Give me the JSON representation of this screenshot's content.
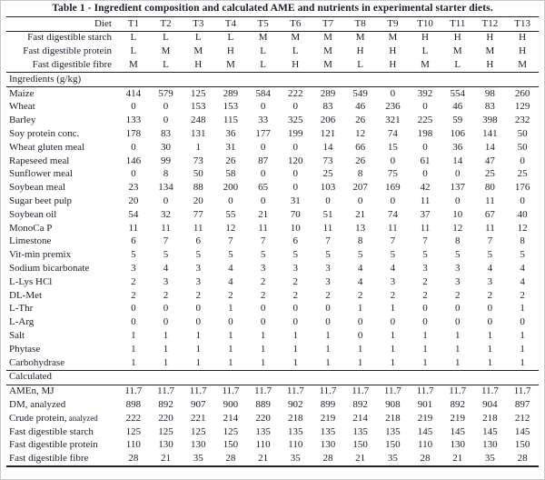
{
  "title": "Table 1 - Ingredient composition and calculated AME and nutrients in experimental starter diets.",
  "table": {
    "header": {
      "label": "Diet",
      "diets": [
        "T1",
        "T2",
        "T3",
        "T4",
        "T5",
        "T6",
        "T7",
        "T8",
        "T9",
        "T10",
        "T11",
        "T12",
        "T13"
      ]
    },
    "factor_rows": [
      {
        "label": "Fast digestible starch",
        "values": [
          "L",
          "L",
          "L",
          "L",
          "M",
          "M",
          "M",
          "M",
          "M",
          "H",
          "H",
          "H",
          "H"
        ]
      },
      {
        "label": "Fast digestible protein",
        "values": [
          "L",
          "M",
          "M",
          "H",
          "L",
          "L",
          "M",
          "H",
          "H",
          "L",
          "M",
          "M",
          "H"
        ]
      },
      {
        "label": "Fast digestible fibre",
        "values": [
          "M",
          "L",
          "H",
          "M",
          "L",
          "H",
          "M",
          "L",
          "H",
          "M",
          "L",
          "H",
          "M"
        ]
      }
    ],
    "ingredients_section": {
      "label": "Ingredients (g/kg)",
      "rows": [
        {
          "label": "Maize",
          "values": [
            414,
            579,
            125,
            289,
            584,
            222,
            289,
            549,
            0,
            392,
            554,
            98,
            260
          ]
        },
        {
          "label": "Wheat",
          "values": [
            0,
            0,
            153,
            153,
            0,
            0,
            83,
            46,
            236,
            0,
            46,
            83,
            129
          ]
        },
        {
          "label": "Barley",
          "values": [
            133,
            0,
            248,
            115,
            33,
            325,
            206,
            26,
            321,
            225,
            59,
            398,
            232
          ]
        },
        {
          "label": "Soy protein conc.",
          "values": [
            178,
            83,
            131,
            36,
            177,
            199,
            121,
            12,
            74,
            198,
            106,
            141,
            50
          ]
        },
        {
          "label": "Wheat gluten meal",
          "values": [
            0,
            30,
            1,
            31,
            0,
            0,
            14,
            66,
            15,
            0,
            36,
            14,
            50
          ]
        },
        {
          "label": "Rapeseed meal",
          "values": [
            146,
            99,
            73,
            26,
            87,
            120,
            73,
            26,
            0,
            61,
            14,
            47,
            0
          ]
        },
        {
          "label": "Sunflower meal",
          "values": [
            0,
            8,
            50,
            58,
            0,
            0,
            25,
            8,
            75,
            0,
            0,
            25,
            25
          ]
        },
        {
          "label": "Soybean meal",
          "values": [
            23,
            134,
            88,
            200,
            65,
            0,
            103,
            207,
            169,
            42,
            137,
            80,
            176
          ]
        },
        {
          "label": "Sugar beet pulp",
          "values": [
            20,
            0,
            20,
            0,
            0,
            31,
            0,
            0,
            0,
            11,
            0,
            11,
            0
          ]
        },
        {
          "label": "Soybean oil",
          "values": [
            54,
            32,
            77,
            55,
            21,
            70,
            51,
            21,
            74,
            37,
            10,
            67,
            40
          ]
        },
        {
          "label": "MonoCa P",
          "values": [
            11,
            11,
            11,
            12,
            11,
            10,
            11,
            13,
            11,
            11,
            12,
            11,
            12
          ]
        },
        {
          "label": "Limestone",
          "values": [
            6,
            7,
            6,
            7,
            7,
            6,
            7,
            8,
            7,
            7,
            8,
            7,
            8
          ]
        },
        {
          "label": "Vit-min premix",
          "values": [
            5,
            5,
            5,
            5,
            5,
            5,
            5,
            5,
            5,
            5,
            5,
            5,
            5
          ]
        },
        {
          "label": "Sodium bicarbonate",
          "values": [
            3,
            4,
            3,
            4,
            3,
            3,
            3,
            4,
            4,
            3,
            3,
            4,
            4
          ]
        },
        {
          "label": "L-Lys HCl",
          "values": [
            2,
            3,
            3,
            4,
            2,
            2,
            3,
            4,
            3,
            2,
            3,
            3,
            4
          ]
        },
        {
          "label": "DL-Met",
          "values": [
            2,
            2,
            2,
            2,
            2,
            2,
            2,
            2,
            2,
            2,
            2,
            2,
            2
          ]
        },
        {
          "label": "L-Thr",
          "values": [
            0,
            0,
            0,
            1,
            0,
            0,
            0,
            1,
            1,
            0,
            0,
            0,
            1
          ]
        },
        {
          "label": "L-Arg",
          "values": [
            0,
            0,
            0,
            0,
            0,
            0,
            0,
            0,
            0,
            0,
            0,
            0,
            0
          ]
        },
        {
          "label": "Salt",
          "values": [
            1,
            1,
            1,
            1,
            1,
            1,
            1,
            0,
            1,
            1,
            1,
            1,
            1
          ]
        },
        {
          "label": "Phytase",
          "values": [
            1,
            1,
            1,
            1,
            1,
            1,
            1,
            1,
            1,
            1,
            1,
            1,
            1
          ]
        },
        {
          "label": "Carbohydrase",
          "values": [
            1,
            1,
            1,
            1,
            1,
            1,
            1,
            1,
            1,
            1,
            1,
            1,
            1
          ]
        }
      ]
    },
    "calculated_section": {
      "label": "Calculated",
      "rows": [
        {
          "label": "AMEn, MJ",
          "values": [
            "11.7",
            "11.7",
            "11.7",
            "11.7",
            "11.7",
            "11.7",
            "11.7",
            "11.7",
            "11.7",
            "11.7",
            "11.7",
            "11.7",
            "11.7"
          ]
        },
        {
          "label": "DM, analyzed",
          "values": [
            898,
            892,
            907,
            900,
            889,
            902,
            899,
            892,
            908,
            901,
            892,
            904,
            897
          ]
        },
        {
          "label": "Crude protein,",
          "label_small": "analyzed",
          "values": [
            222,
            220,
            221,
            214,
            220,
            218,
            219,
            214,
            218,
            219,
            219,
            218,
            212
          ]
        },
        {
          "label": "Fast digestible starch",
          "values": [
            125,
            125,
            125,
            125,
            135,
            135,
            135,
            135,
            135,
            145,
            145,
            145,
            145
          ]
        },
        {
          "label": "Fast digestible protein",
          "values": [
            110,
            130,
            130,
            150,
            110,
            110,
            130,
            150,
            150,
            110,
            130,
            130,
            150
          ]
        },
        {
          "label": "Fast digestible fibre",
          "values": [
            28,
            21,
            35,
            28,
            21,
            35,
            28,
            21,
            35,
            28,
            21,
            35,
            28
          ]
        }
      ]
    }
  },
  "colors": {
    "background": "#ffffff",
    "text": "#1d1d2b",
    "rule": "#242424",
    "frame_border": "#c9c9c9"
  }
}
